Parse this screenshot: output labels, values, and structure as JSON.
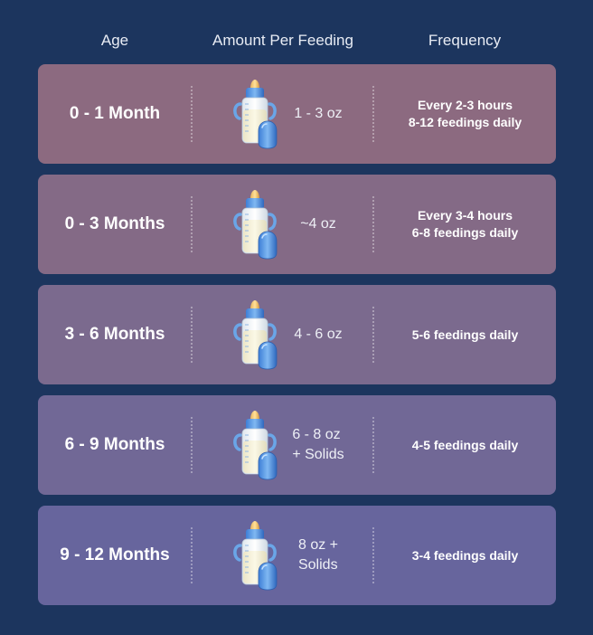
{
  "header": {
    "age": "Age",
    "amount": "Amount Per Feeding",
    "frequency": "Frequency"
  },
  "rows": [
    {
      "age": "0 - 1 Month",
      "amount": "1 - 3 oz",
      "frequency": "Every 2-3 hours\n8-12 feedings daily",
      "color": "#8c6a80",
      "icon": "baby-bottle-icon"
    },
    {
      "age": "0 - 3 Months",
      "amount": "~4 oz",
      "frequency": "Every 3-4 hours\n6-8 feedings daily",
      "color": "#846a86",
      "icon": "baby-bottle-icon"
    },
    {
      "age": "3 - 6 Months",
      "amount": "4 - 6 oz",
      "frequency": "5-6 feedings daily",
      "color": "#7b6a8e",
      "icon": "baby-bottle-icon"
    },
    {
      "age": "6 - 9 Months",
      "amount": "6 - 8 oz\n+ Solids",
      "frequency": "4-5 feedings daily",
      "color": "#716896",
      "icon": "baby-bottle-icon"
    },
    {
      "age": "9 - 12 Months",
      "amount": " 8 oz +\nSolids",
      "frequency": "3-4 feedings daily",
      "color": "#67659d",
      "icon": "baby-bottle-icon"
    }
  ]
}
